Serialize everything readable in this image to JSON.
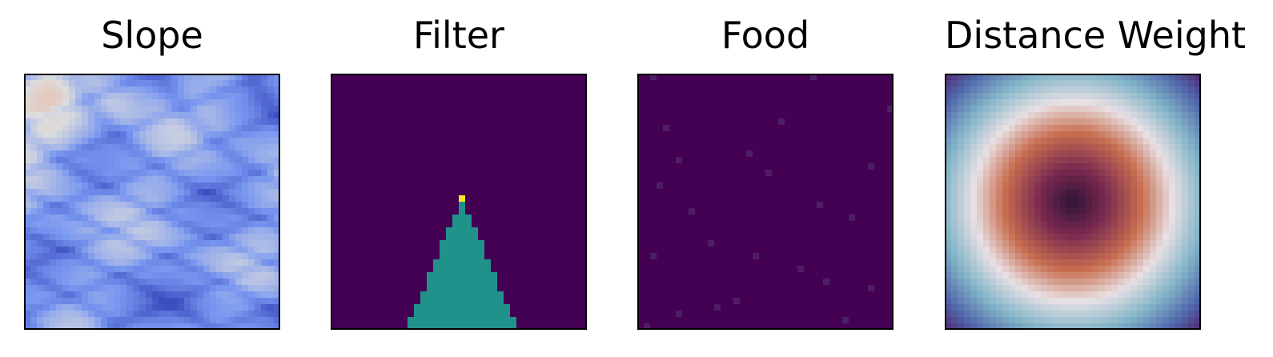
{
  "chart_data": [
    {
      "type": "heatmap",
      "title": "Slope",
      "grid_size": 40,
      "colormap": "coolwarm",
      "axes_visible": false,
      "description_values": "terrain slope field, mostly cool blue with darker blue ridges and warm patches top-left"
    },
    {
      "type": "heatmap",
      "title": "Filter",
      "grid_size": 40,
      "colormap": "viridis",
      "axes_visible": false,
      "background_value": 0,
      "cone_value": 0.5,
      "agent_value": 1,
      "cone": {
        "apex_col": 20,
        "apex_row": 20,
        "base_row": 39,
        "base_col_start": 12,
        "base_col_end": 28
      },
      "agent_cell": {
        "col": 20,
        "row": 19
      }
    },
    {
      "type": "heatmap",
      "title": "Food",
      "grid_size": 40,
      "colormap": "viridis",
      "axes_visible": false,
      "background_value": 0,
      "food_cells": [
        [
          2,
          0
        ],
        [
          27,
          0
        ],
        [
          40,
          5
        ],
        [
          22,
          7
        ],
        [
          4,
          8
        ],
        [
          17,
          12
        ],
        [
          6,
          13
        ],
        [
          36,
          14
        ],
        [
          3,
          17
        ],
        [
          20,
          15
        ],
        [
          8,
          21
        ],
        [
          28,
          20
        ],
        [
          33,
          22
        ],
        [
          11,
          26
        ],
        [
          18,
          28
        ],
        [
          2,
          28
        ],
        [
          29,
          32
        ],
        [
          15,
          35
        ],
        [
          36,
          33
        ],
        [
          6,
          37
        ],
        [
          32,
          38
        ],
        [
          1,
          39
        ],
        [
          12,
          36
        ],
        [
          25,
          30
        ]
      ]
    },
    {
      "type": "heatmap",
      "title": "Distance Weight",
      "grid_size": 40,
      "colormap": "twilight_shifted",
      "axes_visible": false,
      "center": [
        20,
        20
      ]
    }
  ]
}
